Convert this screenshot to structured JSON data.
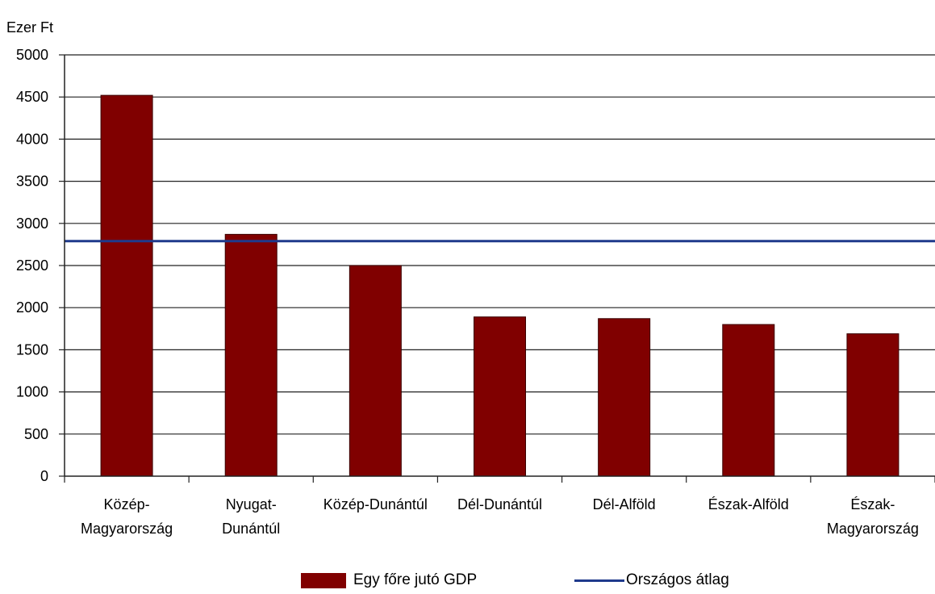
{
  "chart_data": {
    "type": "bar",
    "unit_label": "Ezer Ft",
    "categories": [
      [
        "Közép-",
        "Magyarország"
      ],
      [
        "Nyugat-",
        "Dunántúl"
      ],
      [
        "Közép-Dunántúl"
      ],
      [
        "Dél-Dunántúl"
      ],
      [
        "Dél-Alföld"
      ],
      [
        "Észak-Alföld"
      ],
      [
        "Észak-",
        "Magyarország"
      ]
    ],
    "series": [
      {
        "name": "Egy főre jutó GDP",
        "type": "bar",
        "color": "#800000",
        "values": [
          4520,
          2870,
          2500,
          1890,
          1870,
          1800,
          1690
        ]
      },
      {
        "name": "Országos átlag",
        "type": "line",
        "color": "#1f3a8c",
        "value": 2790
      }
    ],
    "ylim": [
      0,
      5000
    ],
    "yticks": [
      0,
      500,
      1000,
      1500,
      2000,
      2500,
      3000,
      3500,
      4000,
      4500,
      5000
    ],
    "grid": true,
    "legend_position": "bottom"
  }
}
